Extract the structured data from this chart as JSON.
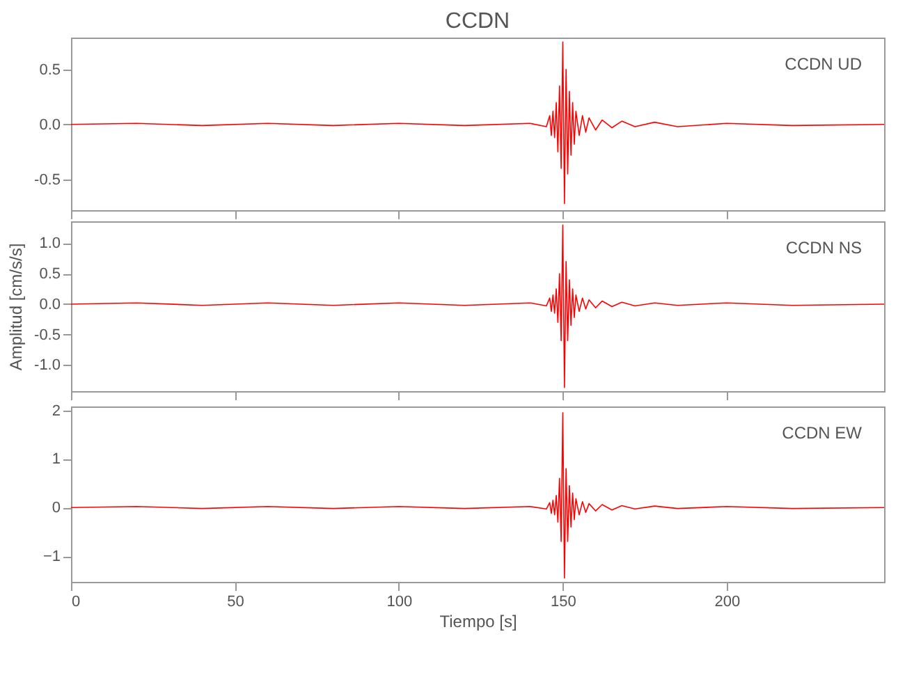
{
  "chart_data": [
    {
      "type": "line",
      "title": "CCDN",
      "annotations": [
        "CCDN UD"
      ],
      "xlim": [
        0,
        248
      ],
      "xticks": [
        0,
        50,
        100,
        150,
        200
      ],
      "ylim": [
        -0.78,
        0.79
      ],
      "yticks": [
        {
          "value": -0.5,
          "label": "-0.5"
        },
        {
          "value": 0,
          "label": "0.0"
        },
        0.5
      ],
      "tick_labels": "y",
      "grid": false,
      "x": [
        0,
        20,
        40,
        60,
        80,
        100,
        120,
        140,
        145,
        146,
        146.5,
        147,
        147.5,
        148,
        148.5,
        149,
        149.5,
        150,
        150.5,
        151,
        151.5,
        152,
        152.5,
        153,
        153.5,
        154,
        155,
        156,
        157,
        158,
        160,
        162,
        165,
        168,
        172,
        178,
        185,
        200,
        220,
        248
      ],
      "series": [
        {
          "color": "#ff0000",
          "values": [
            0,
            0.01,
            -0.01,
            0.01,
            -0.01,
            0.01,
            -0.01,
            0.01,
            -0.02,
            0.08,
            -0.1,
            0.12,
            -0.12,
            0.2,
            -0.25,
            0.35,
            -0.4,
            0.75,
            -0.72,
            0.5,
            -0.45,
            0.3,
            -0.28,
            0.2,
            -0.18,
            0.12,
            -0.1,
            0.08,
            -0.07,
            0.06,
            -0.05,
            0.04,
            -0.03,
            0.03,
            -0.02,
            0.02,
            -0.02,
            0.01,
            -0.01,
            0
          ]
        }
      ]
    },
    {
      "type": "line",
      "ylabel": "Amplitud [cm/s/s]",
      "annotations": [
        "CCDN NS"
      ],
      "xlim": [
        0,
        248
      ],
      "xticks": [
        0,
        50,
        100,
        150,
        200
      ],
      "ylim": [
        -1.43,
        1.36
      ],
      "yticks": [
        {
          "value": -1,
          "label": "-1.0"
        },
        {
          "value": -0.5,
          "label": "-0.5"
        },
        {
          "value": 0,
          "label": "0.0"
        },
        0.5,
        {
          "value": 1,
          "label": "1.0"
        }
      ],
      "tick_labels": "y",
      "grid": false,
      "x": [
        0,
        20,
        40,
        60,
        80,
        100,
        120,
        140,
        145,
        146,
        146.5,
        147,
        147.5,
        148,
        148.5,
        149,
        149.5,
        150,
        150.5,
        151,
        151.5,
        152,
        152.5,
        153,
        153.5,
        154,
        155,
        156,
        157,
        158,
        160,
        162,
        165,
        168,
        172,
        178,
        185,
        200,
        220,
        248
      ],
      "series": [
        {
          "color": "#ff0000",
          "values": [
            0,
            0.02,
            -0.02,
            0.02,
            -0.02,
            0.02,
            -0.02,
            0.02,
            -0.03,
            0.1,
            -0.12,
            0.15,
            -0.15,
            0.25,
            -0.3,
            0.5,
            -0.6,
            1.3,
            -1.37,
            0.7,
            -0.6,
            0.4,
            -0.35,
            0.25,
            -0.22,
            0.15,
            -0.12,
            0.1,
            -0.08,
            0.07,
            -0.06,
            0.05,
            -0.04,
            0.03,
            -0.03,
            0.02,
            -0.02,
            0.02,
            -0.02,
            0
          ]
        }
      ]
    },
    {
      "type": "line",
      "xlabel": "Tiempo [s]",
      "annotations": [
        "CCDN EW"
      ],
      "xlim": [
        0,
        248
      ],
      "xticks": [
        0,
        50,
        100,
        150,
        200
      ],
      "ylim": [
        -1.53,
        2.08
      ],
      "yticks": [
        -1,
        0,
        1,
        2
      ],
      "grid": false,
      "x": [
        0,
        20,
        40,
        60,
        80,
        100,
        120,
        140,
        145,
        146,
        146.5,
        147,
        147.5,
        148,
        148.5,
        149,
        149.5,
        150,
        150.5,
        151,
        151.5,
        152,
        152.5,
        153,
        153.5,
        154,
        155,
        156,
        157,
        158,
        160,
        162,
        165,
        168,
        172,
        178,
        185,
        200,
        220,
        248
      ],
      "series": [
        {
          "color": "#ff0000",
          "values": [
            0,
            0.02,
            -0.02,
            0.02,
            -0.02,
            0.02,
            -0.02,
            0.02,
            -0.03,
            0.1,
            -0.12,
            0.15,
            -0.15,
            0.25,
            -0.3,
            0.6,
            -0.7,
            1.95,
            -1.45,
            0.8,
            -0.7,
            0.45,
            -0.4,
            0.3,
            -0.25,
            0.18,
            -0.15,
            0.12,
            -0.1,
            0.08,
            -0.07,
            0.06,
            -0.05,
            0.04,
            -0.03,
            0.03,
            -0.02,
            0.02,
            -0.02,
            0
          ]
        }
      ]
    }
  ]
}
